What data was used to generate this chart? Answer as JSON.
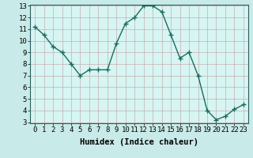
{
  "x": [
    0,
    1,
    2,
    3,
    4,
    5,
    6,
    7,
    8,
    9,
    10,
    11,
    12,
    13,
    14,
    15,
    16,
    17,
    18,
    19,
    20,
    21,
    22,
    23
  ],
  "y": [
    11.2,
    10.5,
    9.5,
    9.0,
    8.0,
    7.0,
    7.5,
    7.5,
    7.5,
    9.8,
    11.5,
    12.0,
    13.0,
    13.0,
    12.5,
    10.5,
    8.5,
    9.0,
    7.0,
    4.0,
    3.2,
    3.5,
    4.1,
    4.5
  ],
  "xlabel": "Humidex (Indice chaleur)",
  "ylim_min": 3,
  "ylim_max": 13,
  "xlim_min": -0.5,
  "xlim_max": 23.5,
  "yticks": [
    3,
    4,
    5,
    6,
    7,
    8,
    9,
    10,
    11,
    12,
    13
  ],
  "xticks": [
    0,
    1,
    2,
    3,
    4,
    5,
    6,
    7,
    8,
    9,
    10,
    11,
    12,
    13,
    14,
    15,
    16,
    17,
    18,
    19,
    20,
    21,
    22,
    23
  ],
  "line_color": "#1c6b5e",
  "marker": "+",
  "bg_color": "#c8eae8",
  "plot_bg_color": "#d6f5f3",
  "grid_color": "#c0a0a0",
  "xlabel_fontsize": 7.5,
  "tick_fontsize": 6.5,
  "linewidth": 1.0,
  "markersize": 4,
  "markeredgewidth": 1.0
}
